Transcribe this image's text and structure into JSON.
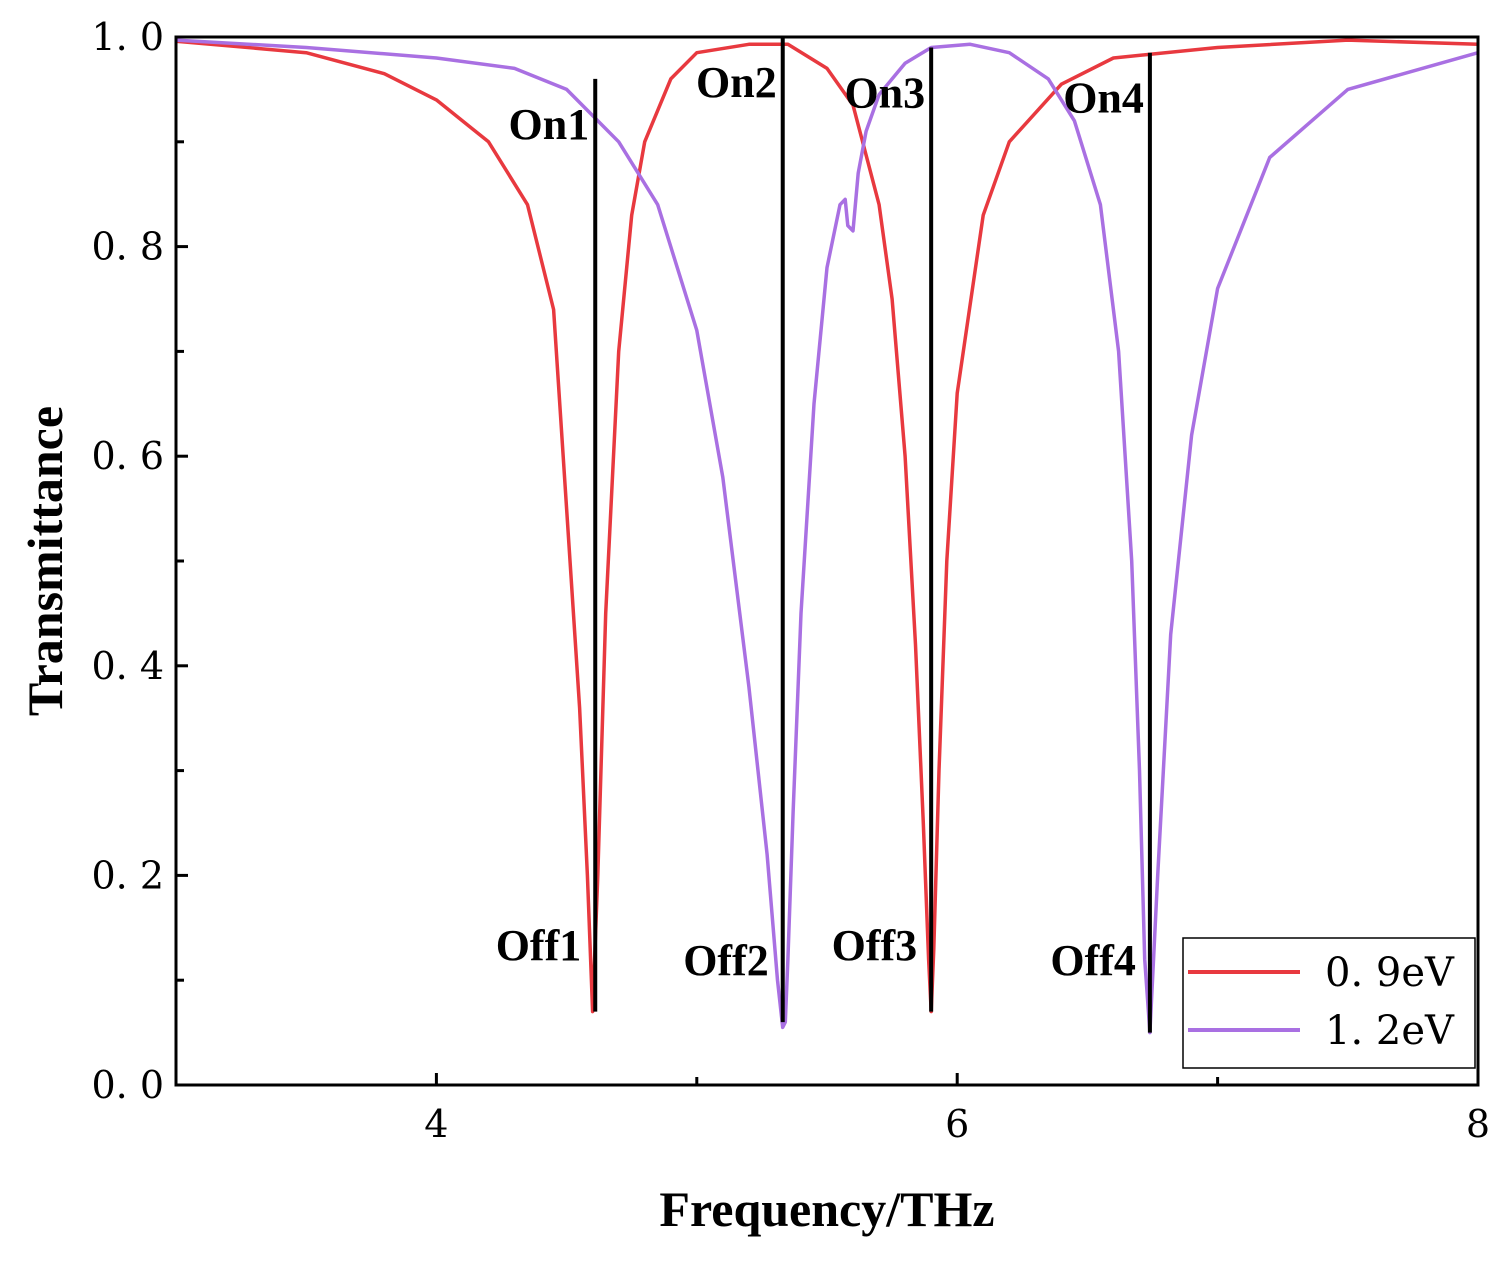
{
  "chart_data": {
    "type": "line",
    "title": "",
    "xlabel": "Frequency/THz",
    "ylabel": "Transmittance",
    "xlim": [
      3,
      8
    ],
    "ylim": [
      0,
      1.0
    ],
    "x_major_ticks": [
      4,
      6,
      8
    ],
    "x_major_tick_labels": [
      "4",
      "6",
      "8"
    ],
    "x_minor_ticks": [
      5,
      7
    ],
    "y_major_ticks": [
      0.0,
      0.2,
      0.4,
      0.6,
      0.8,
      1.0
    ],
    "y_tick_labels": [
      "0. 0",
      "0. 2",
      "0. 4",
      "0. 6",
      "0. 8",
      "1. 0"
    ],
    "y_minor_ticks": [
      0.1,
      0.3,
      0.5,
      0.7,
      0.9
    ],
    "legend_position": "bottom-right",
    "series": [
      {
        "name": "0. 9eV",
        "color": "#e8393f",
        "x": [
          3.0,
          3.5,
          3.8,
          4.0,
          4.2,
          4.35,
          4.45,
          4.5,
          4.55,
          4.58,
          4.6,
          4.62,
          4.65,
          4.7,
          4.75,
          4.8,
          4.9,
          5.0,
          5.2,
          5.35,
          5.5,
          5.6,
          5.7,
          5.75,
          5.8,
          5.84,
          5.87,
          5.89,
          5.9,
          5.91,
          5.93,
          5.96,
          6.0,
          6.1,
          6.2,
          6.4,
          6.6,
          7.0,
          7.5,
          8.0
        ],
        "y": [
          0.996,
          0.985,
          0.965,
          0.94,
          0.9,
          0.84,
          0.74,
          0.55,
          0.36,
          0.2,
          0.07,
          0.2,
          0.45,
          0.7,
          0.83,
          0.9,
          0.96,
          0.985,
          0.993,
          0.993,
          0.97,
          0.935,
          0.84,
          0.75,
          0.6,
          0.42,
          0.25,
          0.12,
          0.07,
          0.13,
          0.3,
          0.5,
          0.66,
          0.83,
          0.9,
          0.955,
          0.98,
          0.99,
          0.997,
          0.993
        ]
      },
      {
        "name": "1. 2eV",
        "color": "#a970e2",
        "x": [
          3.0,
          3.5,
          4.0,
          4.3,
          4.5,
          4.7,
          4.85,
          5.0,
          5.1,
          5.2,
          5.27,
          5.31,
          5.33,
          5.34,
          5.35,
          5.37,
          5.4,
          5.45,
          5.5,
          5.55,
          5.57,
          5.58,
          5.6,
          5.62,
          5.65,
          5.7,
          5.8,
          5.9,
          6.05,
          6.2,
          6.35,
          6.45,
          6.55,
          6.62,
          6.67,
          6.7,
          6.72,
          6.74,
          6.77,
          6.82,
          6.9,
          7.0,
          7.2,
          7.5,
          8.0
        ],
        "y": [
          0.997,
          0.99,
          0.98,
          0.97,
          0.95,
          0.9,
          0.84,
          0.72,
          0.58,
          0.38,
          0.22,
          0.1,
          0.055,
          0.06,
          0.12,
          0.26,
          0.45,
          0.65,
          0.78,
          0.84,
          0.845,
          0.82,
          0.815,
          0.87,
          0.91,
          0.945,
          0.975,
          0.99,
          0.993,
          0.985,
          0.96,
          0.92,
          0.84,
          0.7,
          0.5,
          0.3,
          0.12,
          0.05,
          0.2,
          0.43,
          0.62,
          0.76,
          0.885,
          0.95,
          0.985
        ]
      }
    ],
    "markers": [
      {
        "x": 4.61,
        "y_top": 0.96,
        "y_bottom": 0.07,
        "top_label": "On1",
        "bottom_label": "Off1"
      },
      {
        "x": 5.33,
        "y_top": 1.0,
        "y_bottom": 0.06,
        "top_label": "On2",
        "bottom_label": "Off2"
      },
      {
        "x": 5.9,
        "y_top": 0.99,
        "y_bottom": 0.07,
        "top_label": "On3",
        "bottom_label": "Off3"
      },
      {
        "x": 6.74,
        "y_top": 0.985,
        "y_bottom": 0.05,
        "top_label": "On4",
        "bottom_label": "Off4"
      }
    ]
  }
}
